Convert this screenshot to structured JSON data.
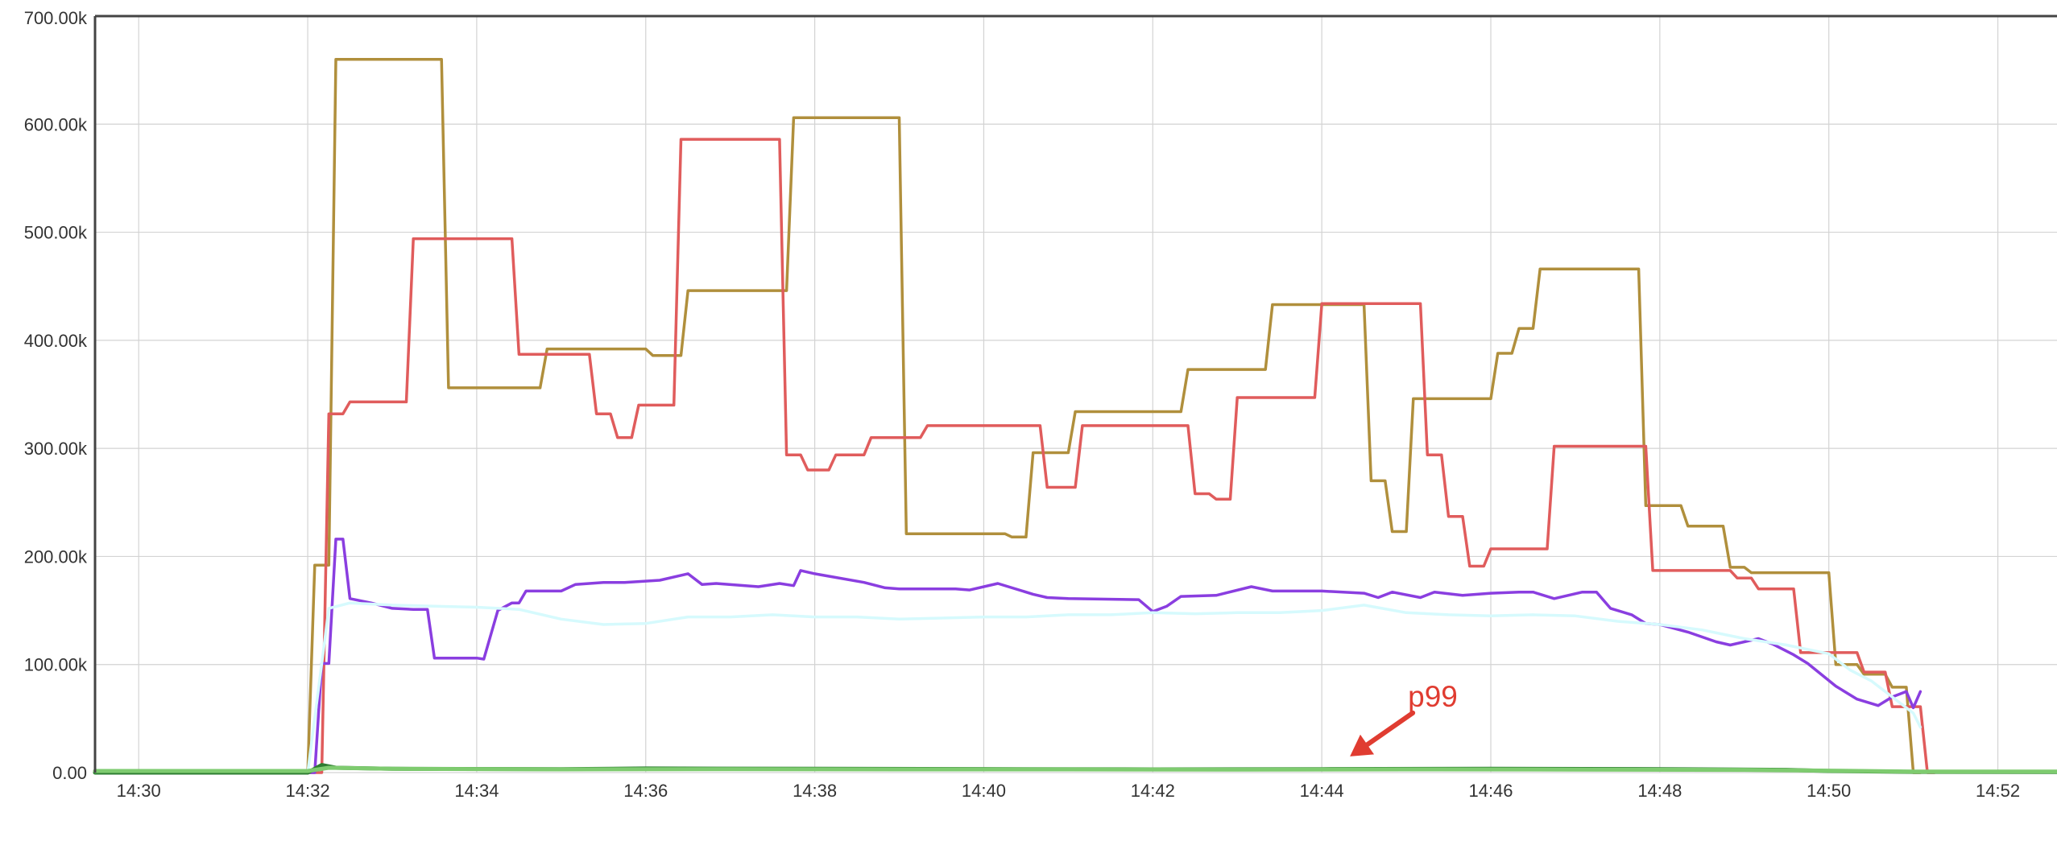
{
  "chart_data": {
    "type": "line",
    "title": "",
    "xlabel": "",
    "ylabel": "",
    "x_range_minutes": [
      14.46,
      14.92
    ],
    "xlim_labels": [
      "14:29:29",
      "14:52:42"
    ],
    "ylim": [
      0,
      700000
    ],
    "grid": true,
    "legend": "none",
    "y_ticks": [
      {
        "value": 0,
        "label": "0.00"
      },
      {
        "value": 100000,
        "label": "100.00k"
      },
      {
        "value": 200000,
        "label": "200.00k"
      },
      {
        "value": 300000,
        "label": "300.00k"
      },
      {
        "value": 400000,
        "label": "400.00k"
      },
      {
        "value": 500000,
        "label": "500.00k"
      },
      {
        "value": 600000,
        "label": "600.00k"
      },
      {
        "value": 700000,
        "label": "700.00k"
      }
    ],
    "x_ticks": [
      "14:30",
      "14:32",
      "14:34",
      "14:36",
      "14:38",
      "14:40",
      "14:42",
      "14:44",
      "14:46",
      "14:48",
      "14:50",
      "14:52"
    ],
    "series": [
      {
        "color": "#b08f3c",
        "x": [
          "14:29:29",
          "14:32:00",
          "14:32:05",
          "14:32:15",
          "14:32:20",
          "14:33:35",
          "14:33:40",
          "14:34:45",
          "14:34:50",
          "14:36:00",
          "14:36:05",
          "14:36:25",
          "14:36:30",
          "14:37:40",
          "14:37:45",
          "14:39:00",
          "14:39:05",
          "14:40:15",
          "14:40:20",
          "14:40:30",
          "14:40:35",
          "14:41:00",
          "14:41:05",
          "14:42:20",
          "14:42:25",
          "14:43:20",
          "14:43:25",
          "14:44:30",
          "14:44:35",
          "14:44:45",
          "14:44:50",
          "14:45:00",
          "14:45:05",
          "14:46:00",
          "14:46:05",
          "14:46:15",
          "14:46:20",
          "14:46:30",
          "14:46:35",
          "14:47:45",
          "14:47:50",
          "14:48:15",
          "14:48:20",
          "14:48:45",
          "14:48:50",
          "14:49:00",
          "14:49:05",
          "14:50:00",
          "14:50:05",
          "14:50:20",
          "14:50:25",
          "14:50:40",
          "14:50:45",
          "14:50:55",
          "14:51:00",
          "14:51:05"
        ],
        "values": [
          0,
          0,
          192000,
          192000,
          660000,
          660000,
          356000,
          356000,
          392000,
          392000,
          386000,
          386000,
          446000,
          446000,
          606000,
          606000,
          221000,
          221000,
          218000,
          218000,
          296000,
          296000,
          334000,
          334000,
          373000,
          373000,
          433000,
          433000,
          270000,
          270000,
          223000,
          223000,
          346000,
          346000,
          388000,
          388000,
          411000,
          411000,
          466000,
          466000,
          247000,
          247000,
          228000,
          228000,
          190000,
          190000,
          185000,
          185000,
          100000,
          100000,
          91000,
          91000,
          79000,
          79000,
          0,
          0
        ]
      },
      {
        "color": "#e05c5c",
        "x": [
          "14:29:29",
          "14:32:10",
          "14:32:15",
          "14:32:25",
          "14:32:30",
          "14:33:10",
          "14:33:15",
          "14:34:25",
          "14:34:30",
          "14:35:20",
          "14:35:25",
          "14:35:35",
          "14:35:40",
          "14:35:50",
          "14:35:55",
          "14:36:20",
          "14:36:25",
          "14:37:35",
          "14:37:40",
          "14:37:50",
          "14:37:55",
          "14:38:10",
          "14:38:15",
          "14:38:35",
          "14:38:40",
          "14:39:15",
          "14:39:20",
          "14:40:40",
          "14:40:45",
          "14:41:05",
          "14:41:10",
          "14:42:25",
          "14:42:30",
          "14:42:40",
          "14:42:45",
          "14:42:55",
          "14:43:00",
          "14:43:55",
          "14:44:00",
          "14:45:10",
          "14:45:15",
          "14:45:25",
          "14:45:30",
          "14:45:40",
          "14:45:45",
          "14:45:55",
          "14:46:00",
          "14:46:40",
          "14:46:45",
          "14:47:50",
          "14:47:55",
          "14:48:50",
          "14:48:55",
          "14:49:05",
          "14:49:10",
          "14:49:35",
          "14:49:40",
          "14:50:20",
          "14:50:25",
          "14:50:40",
          "14:50:45",
          "14:51:05",
          "14:51:10",
          "14:51:15"
        ],
        "values": [
          0,
          0,
          332000,
          332000,
          343000,
          343000,
          494000,
          494000,
          387000,
          387000,
          332000,
          332000,
          310000,
          310000,
          340000,
          340000,
          586000,
          586000,
          294000,
          294000,
          280000,
          280000,
          294000,
          294000,
          310000,
          310000,
          321000,
          321000,
          264000,
          264000,
          321000,
          321000,
          258000,
          258000,
          253000,
          253000,
          347000,
          347000,
          434000,
          434000,
          294000,
          294000,
          237000,
          237000,
          191000,
          191000,
          207000,
          207000,
          302000,
          302000,
          187000,
          187000,
          180000,
          180000,
          170000,
          170000,
          111000,
          111000,
          93000,
          93000,
          61000,
          61000,
          0,
          0
        ]
      },
      {
        "color": "#8a3ee0",
        "x": [
          "14:29:29",
          "14:32:00",
          "14:32:05",
          "14:32:10",
          "14:32:15",
          "14:32:20",
          "14:32:25",
          "14:32:30",
          "14:32:45",
          "14:33:00",
          "14:33:15",
          "14:33:25",
          "14:33:30",
          "14:34:00",
          "14:34:05",
          "14:34:15",
          "14:34:25",
          "14:34:30",
          "14:34:35",
          "14:35:00",
          "14:35:10",
          "14:35:30",
          "14:35:45",
          "14:36:10",
          "14:36:30",
          "14:36:40",
          "14:36:50",
          "14:37:20",
          "14:37:35",
          "14:37:45",
          "14:37:50",
          "14:38:00",
          "14:38:35",
          "14:38:50",
          "14:39:00",
          "14:39:40",
          "14:39:50",
          "14:40:10",
          "14:40:35",
          "14:40:45",
          "14:41:00",
          "14:41:50",
          "14:42:00",
          "14:42:10",
          "14:42:20",
          "14:42:45",
          "14:43:10",
          "14:43:25",
          "14:43:50",
          "14:44:00",
          "14:44:30",
          "14:44:40",
          "14:44:50",
          "14:45:10",
          "14:45:20",
          "14:45:40",
          "14:46:00",
          "14:46:20",
          "14:46:30",
          "14:46:45",
          "14:47:05",
          "14:47:15",
          "14:47:25",
          "14:47:40",
          "14:47:50",
          "14:48:00",
          "14:48:20",
          "14:48:40",
          "14:48:50",
          "14:49:10",
          "14:49:20",
          "14:49:35",
          "14:49:45",
          "14:50:05",
          "14:50:20",
          "14:50:35",
          "14:50:45",
          "14:50:55",
          "14:51:00",
          "14:51:05"
        ],
        "values": [
          0,
          0,
          0,
          101000,
          101000,
          216000,
          216000,
          161000,
          157000,
          152000,
          151000,
          151000,
          106000,
          106000,
          105000,
          150000,
          157000,
          157000,
          168000,
          168000,
          174000,
          176000,
          176000,
          178000,
          184000,
          174000,
          175000,
          172000,
          175000,
          173000,
          187000,
          184000,
          176000,
          171000,
          170000,
          170000,
          169000,
          175000,
          165000,
          162000,
          161000,
          160000,
          149000,
          154000,
          163000,
          164000,
          172000,
          168000,
          168000,
          168000,
          166000,
          162000,
          167000,
          162000,
          167000,
          164000,
          166000,
          167000,
          167000,
          161000,
          167000,
          167000,
          152000,
          146000,
          138000,
          137000,
          130000,
          121000,
          118000,
          124000,
          119000,
          109000,
          101000,
          80000,
          68000,
          62000,
          70000,
          75000,
          60000,
          75000
        ]
      },
      {
        "color": "#d6fafd",
        "x": [
          "14:29:29",
          "14:32:00",
          "14:32:15",
          "14:32:30",
          "14:33:00",
          "14:33:30",
          "14:34:00",
          "14:34:30",
          "14:35:00",
          "14:35:30",
          "14:36:00",
          "14:36:30",
          "14:37:00",
          "14:37:30",
          "14:38:00",
          "14:38:30",
          "14:39:00",
          "14:39:30",
          "14:40:00",
          "14:40:30",
          "14:41:00",
          "14:41:30",
          "14:42:00",
          "14:42:30",
          "14:43:00",
          "14:43:30",
          "14:44:00",
          "14:44:30",
          "14:45:00",
          "14:45:30",
          "14:46:00",
          "14:46:30",
          "14:47:00",
          "14:47:30",
          "14:48:00",
          "14:48:30",
          "14:49:00",
          "14:49:30",
          "14:50:00",
          "14:50:15",
          "14:50:30",
          "14:50:45",
          "14:51:00",
          "14:51:05"
        ],
        "values": [
          0,
          0,
          152000,
          157000,
          155000,
          154000,
          153000,
          151000,
          142000,
          137000,
          138000,
          144000,
          144000,
          146000,
          144000,
          144000,
          142000,
          143000,
          144000,
          144000,
          146000,
          146000,
          148000,
          147000,
          148000,
          148000,
          150000,
          155000,
          148000,
          146000,
          145000,
          146000,
          145000,
          140000,
          137000,
          132000,
          124000,
          118000,
          110000,
          95000,
          85000,
          70000,
          55000,
          42000
        ]
      },
      {
        "color": "#2e7d32",
        "x": [
          "14:29:29",
          "14:32:00",
          "14:32:10",
          "14:32:20",
          "14:33:00",
          "14:35:00",
          "14:36:00",
          "14:38:00",
          "14:40:00",
          "14:42:00",
          "14:44:00",
          "14:46:00",
          "14:48:00",
          "14:49:30",
          "14:50:00",
          "14:51:00",
          "14:52:42"
        ],
        "values": [
          0,
          0,
          7000,
          4500,
          3500,
          3200,
          3800,
          3500,
          3300,
          3000,
          3200,
          3600,
          3200,
          2500,
          1500,
          700,
          500
        ]
      },
      {
        "color": "#7ecb6f",
        "x": [
          "14:29:29",
          "14:32:00",
          "14:32:15",
          "14:33:00",
          "14:35:00",
          "14:37:00",
          "14:39:00",
          "14:41:00",
          "14:43:00",
          "14:45:00",
          "14:47:00",
          "14:49:00",
          "14:50:00",
          "14:51:00",
          "14:52:42"
        ],
        "values": [
          1500,
          1500,
          4500,
          3500,
          3000,
          3200,
          3000,
          3000,
          2800,
          3000,
          2800,
          2500,
          1800,
          1000,
          1000
        ]
      }
    ],
    "annotations": [
      {
        "text": "p99",
        "color": "#e03c31",
        "points_to": {
          "x": "14:44:20",
          "y": 15000
        }
      }
    ]
  }
}
